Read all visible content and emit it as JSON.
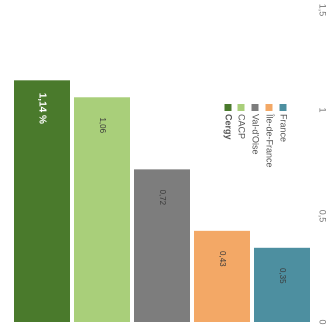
{
  "chart_data": {
    "type": "bar",
    "orientation": "horizontal",
    "rotated": "90deg clockwise",
    "categories": [
      "Cergy",
      "CACP",
      "Val-d'Oise",
      "Île-de-France",
      "France"
    ],
    "values": [
      1.14,
      1.06,
      0.72,
      0.43,
      0.35
    ],
    "value_labels": [
      "1,14 %",
      "1,06",
      "0,72",
      "0,43",
      "0,35"
    ],
    "colors": [
      "#4a7a2c",
      "#a9cf7a",
      "#7d7d7d",
      "#f3a866",
      "#4d8fa0"
    ],
    "axis_ticks": [
      "0",
      "0,5",
      "1",
      "1,5"
    ],
    "xlim": [
      0,
      1.5
    ],
    "grid": false,
    "legend_placement": "right"
  }
}
